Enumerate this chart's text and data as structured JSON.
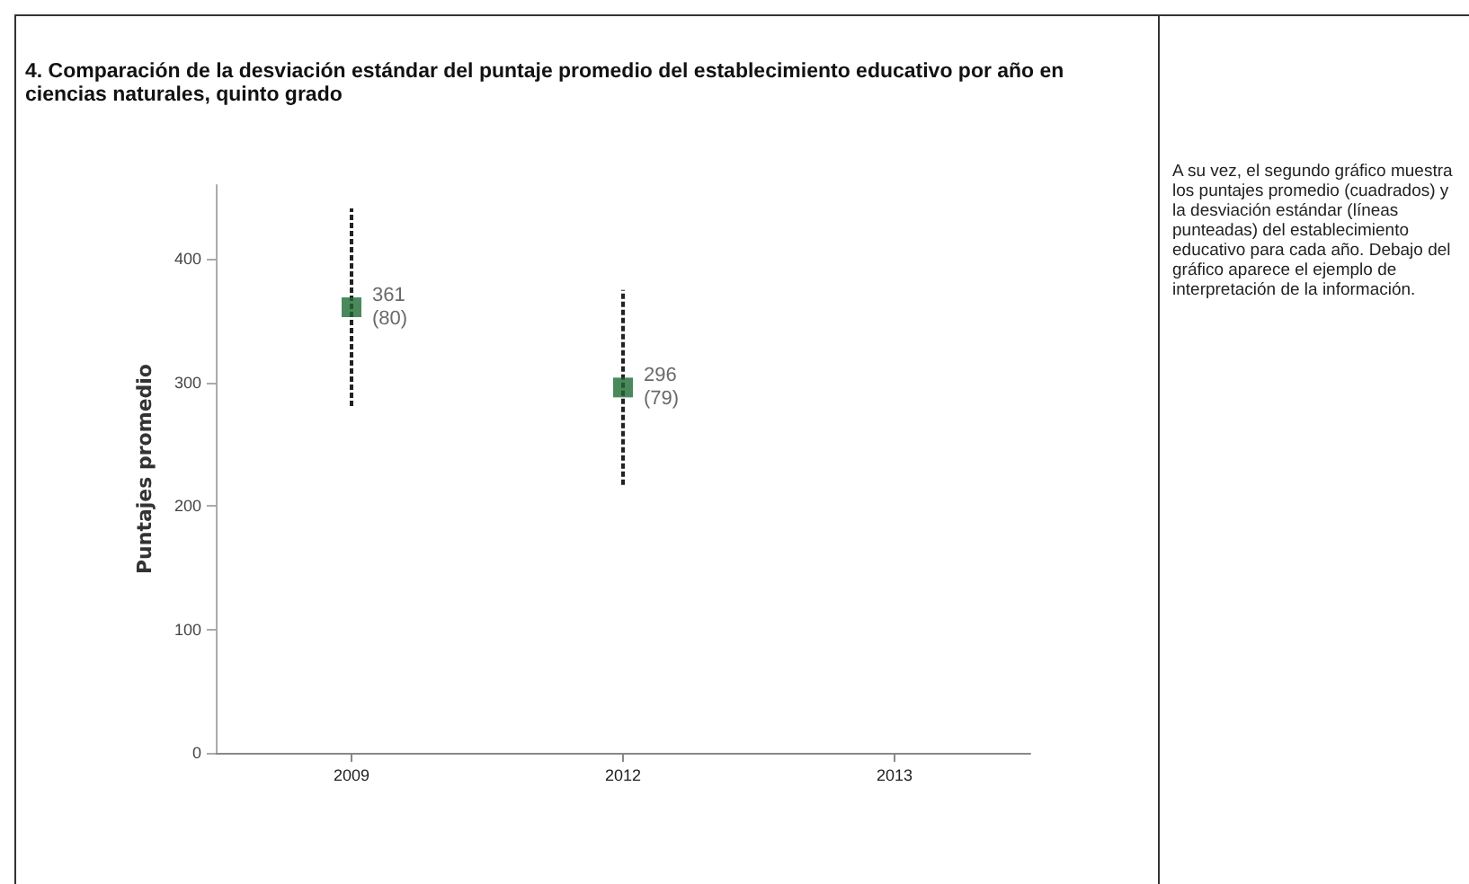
{
  "chart_data": {
    "type": "scatter",
    "title": "4. Comparación de la desviación estándar del puntaje promedio del establecimiento educativo por año en ciencias naturales, quinto grado",
    "ylabel": "Puntajes promedio",
    "categories": [
      "2009",
      "2012",
      "2013"
    ],
    "series": [
      {
        "color": "#1e6b34",
        "values": [
          361,
          296,
          null
        ],
        "errors": [
          80,
          79,
          null
        ],
        "value_labels": [
          "361\n(80)",
          "296\n(79)",
          null
        ]
      }
    ],
    "ylim": [
      0,
      460
    ],
    "yticks": [
      0,
      100,
      200,
      300,
      400
    ],
    "grid": false,
    "marker": "square",
    "line_style": "dashed",
    "annotations": [
      "A su vez, el segundo gráfico muestra los puntajes promedio (cuadrados) y la desviación estándar (líneas punteadas) del establecimiento educativo para cada año. Debajo del gráfico aparece el ejemplo de interpretación de la información."
    ]
  }
}
